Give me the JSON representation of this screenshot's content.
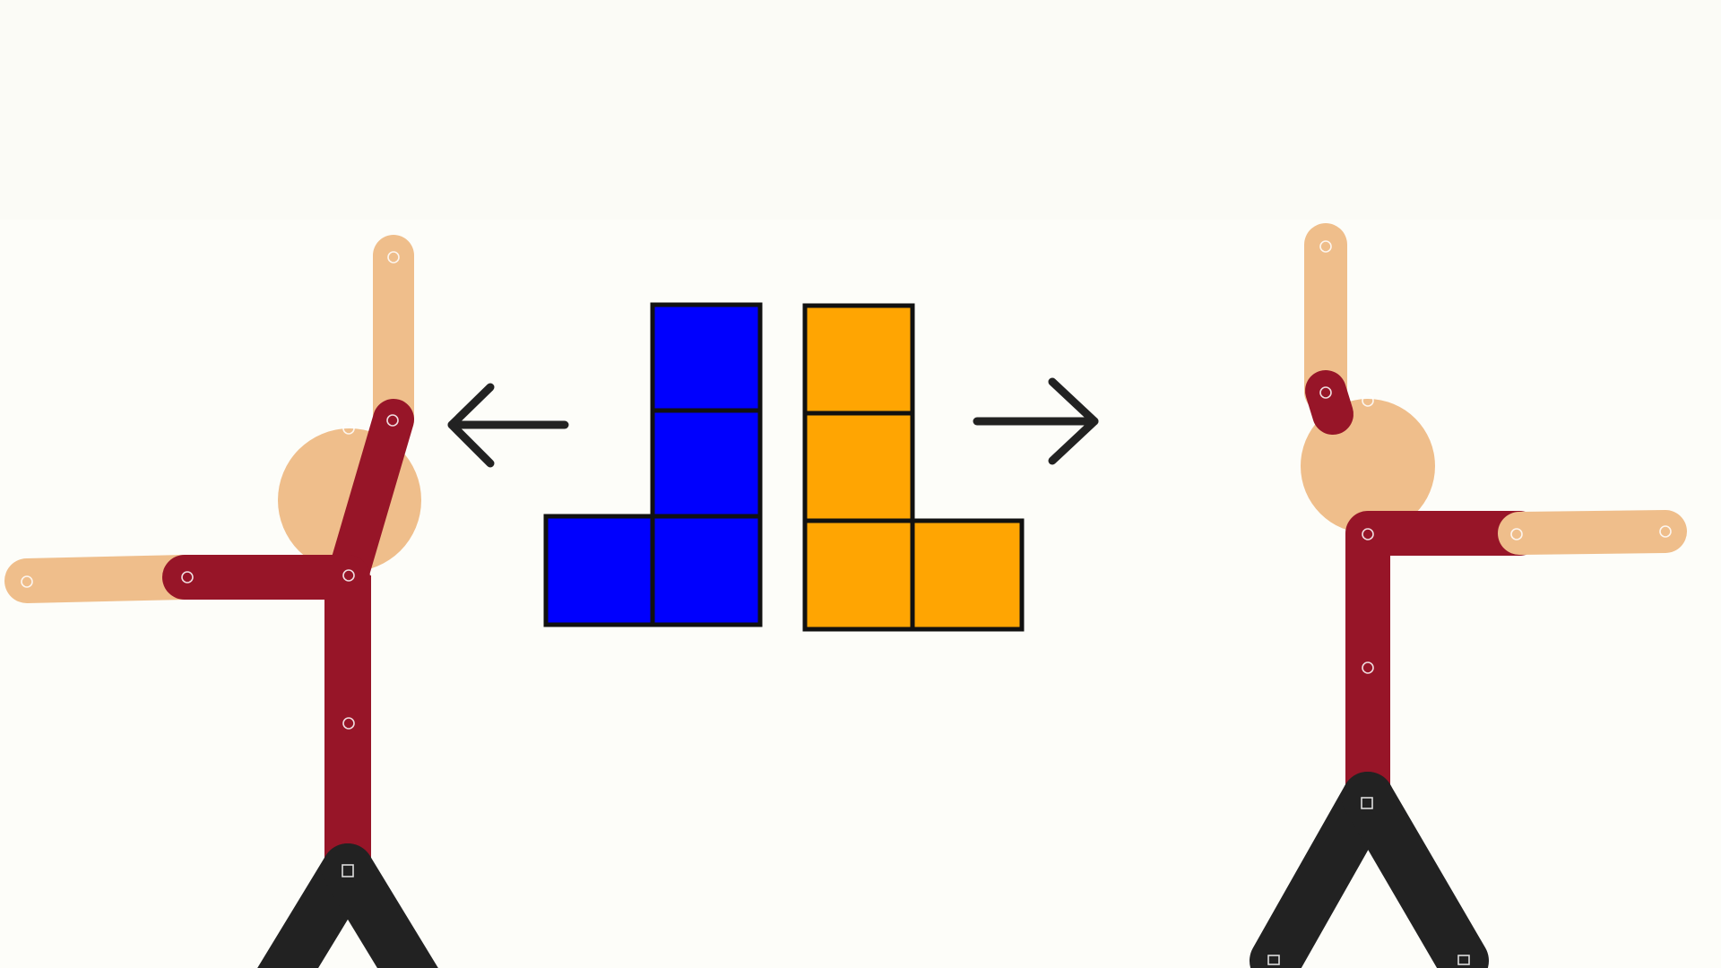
{
  "canvas": {
    "background": "#fdfdf9",
    "top_band": "#fbfbf6"
  },
  "colors": {
    "skin": "#efbe8b",
    "shirt": "#971528",
    "pants": "#222222",
    "blue_block": "#0000fe",
    "orange_block": "#ffa502",
    "block_border": "#111111",
    "arrow": "#222222",
    "joint": "#ffffff"
  },
  "figures": [
    {
      "name": "left-stick-figure",
      "facing": "left"
    },
    {
      "name": "right-stick-figure",
      "facing": "right"
    }
  ],
  "blocks": [
    {
      "name": "blue-j-tetromino",
      "shape": "J",
      "color_key": "blue_block",
      "cells": [
        [
          1,
          0
        ],
        [
          1,
          1
        ],
        [
          0,
          2
        ],
        [
          1,
          2
        ]
      ]
    },
    {
      "name": "orange-l-tetromino",
      "shape": "L",
      "color_key": "orange_block",
      "cells": [
        [
          0,
          0
        ],
        [
          0,
          1
        ],
        [
          0,
          2
        ],
        [
          1,
          2
        ]
      ]
    }
  ],
  "arrows": [
    {
      "name": "left-arrow-icon",
      "direction": "left"
    },
    {
      "name": "right-arrow-icon",
      "direction": "right"
    }
  ]
}
